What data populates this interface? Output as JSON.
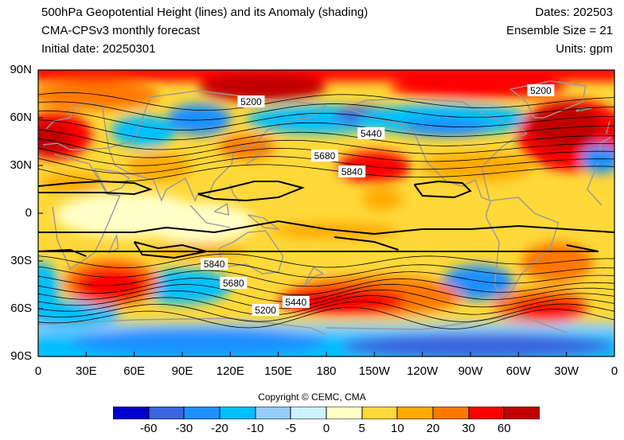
{
  "header": {
    "title": "500hPa Geopotential Height (lines) and its Anomaly (shading)",
    "model": "CMA-CPSv3 monthly forecast",
    "initial": "Initial date: 20250301",
    "dates": "Dates: 202503",
    "ensemble": "Ensemble Size = 21",
    "units": "Units: gpm"
  },
  "axes": {
    "y_ticks": [
      "90N",
      "60N",
      "30N",
      "0",
      "30S",
      "60S",
      "90S"
    ],
    "x_ticks": [
      "0",
      "30E",
      "60E",
      "90E",
      "120E",
      "150E",
      "180",
      "150W",
      "120W",
      "90W",
      "60W",
      "30W",
      "0"
    ]
  },
  "contour_labels": [
    {
      "text": "5200",
      "lon": 133,
      "lat": 70
    },
    {
      "text": "5440",
      "lon": -152,
      "lat": 50
    },
    {
      "text": "5680",
      "lon": 179,
      "lat": 36
    },
    {
      "text": "5840",
      "lon": -164,
      "lat": 26
    },
    {
      "text": "5200",
      "lon": -46,
      "lat": 77
    },
    {
      "text": "5840",
      "lon": 110,
      "lat": -32
    },
    {
      "text": "5680",
      "lon": 122,
      "lat": -44
    },
    {
      "text": "5440",
      "lon": 161,
      "lat": -56
    },
    {
      "text": "5200",
      "lon": 142,
      "lat": -61
    }
  ],
  "colorbar": {
    "colors": [
      "#0000cc",
      "#3a65de",
      "#1e90ff",
      "#00bfff",
      "#96cdfa",
      "#ccf2ff",
      "#ffffc8",
      "#ffd839",
      "#ffaa00",
      "#ff7800",
      "#ff0000",
      "#c00000"
    ],
    "labels": [
      "-60",
      "-30",
      "-20",
      "-10",
      "-5",
      "0",
      "5",
      "10",
      "20",
      "30",
      "60"
    ]
  },
  "copyright": "Copyright © CEMC, CMA"
}
